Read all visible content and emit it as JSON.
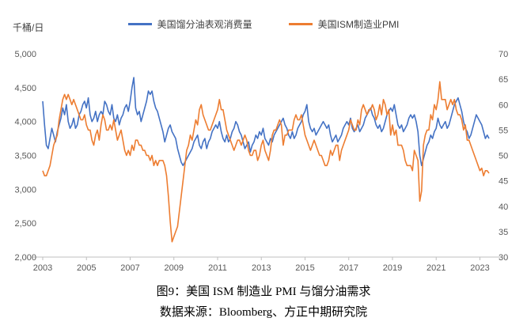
{
  "captions": {
    "title": "图9：美国 ISM 制造业 PMI 与馏分油需求",
    "source": "数据来源：Bloomberg、方正中期研究院"
  },
  "chart_data": {
    "type": "line",
    "title": "",
    "x_start_year": 2003,
    "x_months_per_point": 1,
    "x_tick_years": [
      2003,
      2005,
      2007,
      2009,
      2011,
      2013,
      2015,
      2017,
      2019,
      2021,
      2023
    ],
    "y_left": {
      "label": "千桶/日",
      "min": 2000,
      "max": 5000,
      "step": 500
    },
    "y_right": {
      "min": 30,
      "max": 70,
      "step": 5
    },
    "grid": false,
    "legend_position": "top",
    "axis_color": "#BFBFBF",
    "series": [
      {
        "name": "美国馏分油表观消费量",
        "axis": "left",
        "color": "#4472C4",
        "values": [
          4300,
          3950,
          3650,
          3600,
          3750,
          3900,
          3800,
          3700,
          3850,
          3950,
          4050,
          4200,
          4100,
          4250,
          4000,
          3900,
          3950,
          4050,
          3900,
          3950,
          4100,
          4150,
          4250,
          4300,
          4200,
          4350,
          4100,
          4000,
          4050,
          4150,
          4000,
          4100,
          4150,
          4100,
          4300,
          4250,
          4150,
          4100,
          4250,
          4050,
          4000,
          4100,
          3950,
          4050,
          4100,
          4200,
          4250,
          4150,
          4300,
          4500,
          4650,
          4200,
          4100,
          4150,
          4000,
          4100,
          4200,
          4300,
          4450,
          4400,
          4450,
          4300,
          4200,
          4150,
          4050,
          3950,
          3850,
          3700,
          3800,
          3900,
          3950,
          3850,
          3800,
          3750,
          3600,
          3500,
          3400,
          3350,
          3400,
          3450,
          3500,
          3550,
          3600,
          3700,
          3750,
          3800,
          3650,
          3600,
          3700,
          3750,
          3600,
          3700,
          3750,
          3850,
          3900,
          3950,
          3900,
          4000,
          3850,
          3750,
          3700,
          3800,
          3700,
          3750,
          3850,
          3900,
          4000,
          3950,
          3850,
          3800,
          3700,
          3600,
          3650,
          3700,
          3550,
          3650,
          3700,
          3800,
          3750,
          3850,
          3800,
          3900,
          3750,
          3700,
          3650,
          3750,
          3700,
          3800,
          3850,
          3900,
          3950,
          4000,
          4050,
          3950,
          3900,
          3800,
          3750,
          3850,
          3750,
          3800,
          3900,
          3950,
          4000,
          4100,
          4150,
          4250,
          4000,
          3900,
          3850,
          3900,
          3800,
          3850,
          3900,
          3950,
          4000,
          3950,
          3900,
          3950,
          3800,
          3700,
          3750,
          3800,
          3700,
          3750,
          3800,
          3900,
          3950,
          4000,
          3950,
          4050,
          3900,
          3850,
          3900,
          3950,
          3850,
          3900,
          3950,
          4050,
          4100,
          4150,
          4200,
          4100,
          4050,
          3950,
          3900,
          3950,
          3850,
          3900,
          4000,
          4100,
          4150,
          4200,
          4150,
          4250,
          4100,
          3950,
          3900,
          3950,
          3850,
          3900,
          3950,
          4050,
          4100,
          4050,
          4100,
          4000,
          3850,
          3500,
          3350,
          3450,
          3550,
          3650,
          3700,
          3800,
          3750,
          3850,
          3900,
          4050,
          3950,
          3900,
          3950,
          4000,
          3900,
          3950,
          4050,
          4150,
          4250,
          4300,
          4350,
          4250,
          4150,
          4000,
          3900,
          3850,
          3750,
          3800,
          3900,
          4000,
          4100,
          4050,
          4000,
          3950,
          3850,
          3750,
          3800,
          3750
        ]
      },
      {
        "name": "美国ISM制造业PMI",
        "axis": "right",
        "color": "#ED7D31",
        "values": [
          47,
          46,
          46,
          47,
          48,
          50,
          52,
          53,
          54,
          57,
          59,
          61,
          62,
          61,
          62,
          61,
          60,
          61,
          60,
          59,
          58,
          57,
          57,
          58,
          56,
          55,
          55,
          53,
          52,
          54,
          55,
          53,
          56,
          58,
          57,
          55,
          55,
          56,
          55,
          57,
          55,
          53,
          54,
          55,
          53,
          51,
          50,
          51,
          50,
          52,
          51,
          53,
          53,
          52,
          52,
          51,
          51,
          50,
          50,
          49,
          50,
          48,
          49,
          48,
          49,
          49,
          49,
          48,
          46,
          42,
          37,
          33,
          34,
          35,
          36,
          39,
          42,
          45,
          48,
          51,
          52,
          54,
          53,
          55,
          57,
          56,
          59,
          60,
          58,
          57,
          56,
          55,
          55,
          56,
          57,
          58,
          59,
          61,
          59,
          59,
          57,
          55,
          54,
          53,
          52,
          51,
          52,
          53,
          53,
          52,
          53,
          54,
          53,
          51,
          50,
          50,
          51,
          51,
          49,
          50,
          52,
          53,
          51,
          50,
          49,
          51,
          54,
          55,
          55,
          56,
          57,
          56,
          52,
          54,
          54,
          55,
          55,
          55,
          57,
          58,
          57,
          57,
          58,
          56,
          54,
          53,
          52,
          51,
          52,
          53,
          52,
          51,
          50,
          50,
          49,
          48,
          48,
          49,
          51,
          50,
          51,
          52,
          52,
          49,
          51,
          52,
          53,
          54,
          55,
          57,
          56,
          55,
          55,
          57,
          56,
          59,
          60,
          59,
          58,
          59,
          59,
          60,
          59,
          57,
          58,
          60,
          58,
          61,
          60,
          58,
          59,
          54,
          56,
          54,
          55,
          52,
          52,
          52,
          51,
          49,
          48,
          48,
          48,
          47,
          51,
          50,
          49,
          41,
          43,
          52,
          54,
          55,
          55,
          58,
          57,
          60,
          59,
          61,
          64.5,
          61,
          61,
          61,
          59,
          60,
          61,
          60,
          61,
          59,
          58,
          58,
          57,
          55,
          56,
          53,
          53,
          52,
          51,
          50,
          49,
          48,
          47,
          47.5,
          46,
          47,
          47,
          46.5
        ]
      }
    ]
  }
}
